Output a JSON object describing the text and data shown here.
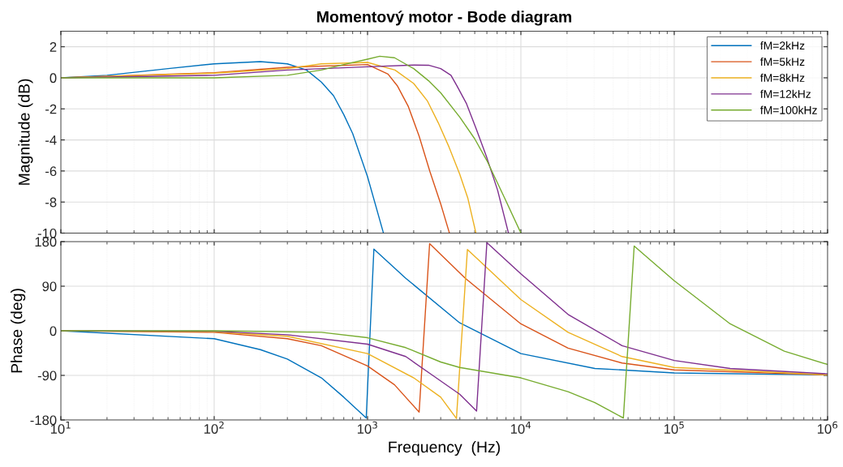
{
  "chart_data": [
    {
      "type": "line",
      "title": "Momentový motor - Bode diagram",
      "ylabel": "Magnitude (dB)",
      "log": "x",
      "grid": true,
      "legend": "top right",
      "marker": "none",
      "line_style": "solid",
      "tick_labels": "y",
      "xlim": [
        10,
        1000000
      ],
      "xticks": [
        {
          "value": 10,
          "label": null
        },
        {
          "value": 100,
          "label": null
        },
        {
          "value": 1000,
          "label": null
        },
        {
          "value": 10000,
          "label": null
        },
        {
          "value": 100000,
          "label": null
        },
        {
          "value": 1000000,
          "label": null
        }
      ],
      "ylim": [
        -10,
        3
      ],
      "yticks": [
        -10,
        -8,
        -6,
        -4,
        -2,
        0,
        2
      ],
      "series": [
        {
          "name": "fM=2kHz",
          "color": "#0072bd",
          "x": [
            10,
            20,
            50,
            100,
            200,
            300,
            400,
            500,
            600,
            700,
            800,
            1000,
            1270
          ],
          "values": [
            0,
            0.16,
            0.59,
            0.9,
            1.04,
            0.9,
            0.5,
            -0.28,
            -1.15,
            -2.37,
            -3.59,
            -6.37,
            -10
          ]
        },
        {
          "name": "fM=5kHz",
          "color": "#d95319",
          "x": [
            10,
            100,
            300,
            1000,
            1360,
            1570,
            1845,
            2170,
            2550,
            3000,
            3420
          ],
          "values": [
            0,
            0.33,
            0.68,
            0.85,
            0.24,
            -0.54,
            -1.85,
            -3.76,
            -6.03,
            -8.12,
            -10
          ]
        },
        {
          "name": "fM=8kHz",
          "color": "#edb120",
          "x": [
            10,
            100,
            300,
            500,
            1000,
            1510,
            2000,
            2460,
            2890,
            3400,
            3990,
            4510,
            5090
          ],
          "values": [
            0,
            0.3,
            0.59,
            0.9,
            0.99,
            0.5,
            -0.37,
            -1.5,
            -2.89,
            -4.46,
            -6.2,
            -7.76,
            -10
          ]
        },
        {
          "name": "fM=12kHz",
          "color": "#7e2f8e",
          "x": [
            10,
            100,
            300,
            1000,
            2000,
            2500,
            3000,
            3500,
            3840,
            4420,
            5090,
            6000,
            7050,
            8300
          ],
          "values": [
            0,
            0.16,
            0.5,
            0.71,
            0.82,
            0.81,
            0.59,
            0.16,
            -0.54,
            -1.67,
            -3.24,
            -5.15,
            -7.24,
            -10
          ]
        },
        {
          "name": "fM=100kHz",
          "color": "#77ac30",
          "x": [
            10,
            100,
            300,
            500,
            700,
            1000,
            1200,
            1500,
            2000,
            2500,
            3000,
            4000,
            5000,
            6000,
            7000,
            8000,
            10000
          ],
          "values": [
            0,
            0,
            0.16,
            0.5,
            0.85,
            1.2,
            1.39,
            1.29,
            0.59,
            -0.19,
            -0.97,
            -2.54,
            -3.93,
            -5.33,
            -6.72,
            -7.94,
            -10
          ]
        }
      ]
    },
    {
      "type": "line",
      "xlabel": "Frequency  (Hz)",
      "ylabel": "Phase (deg)",
      "log": "x",
      "grid": true,
      "marker": "none",
      "line_style": "solid",
      "xlim": [
        10,
        1000000
      ],
      "xticks": [
        {
          "value": 10,
          "label": "10$^{1}$"
        },
        {
          "value": 100,
          "label": "10$^{2}$"
        },
        {
          "value": 1000,
          "label": "10$^{3}$"
        },
        {
          "value": 10000,
          "label": "10$^{4}$"
        },
        {
          "value": 100000,
          "label": "10$^{5}$"
        },
        {
          "value": 1000000,
          "label": "10$^{6}$"
        }
      ],
      "ylim": [
        -180,
        180
      ],
      "yticks": [
        -180,
        -90,
        0,
        90,
        180
      ],
      "series": [
        {
          "color": "#0072bd",
          "x": [
            10,
            100,
            200,
            300,
            500,
            700,
            980,
            1100,
            1775,
            3990,
            10000,
            30400,
            100000,
            1000000
          ],
          "values": [
            0,
            -16,
            -38,
            -57,
            -95,
            -134,
            -176,
            165,
            106,
            16,
            -46,
            -76,
            -85,
            -89
          ]
        },
        {
          "color": "#d95319",
          "x": [
            10,
            100,
            300,
            500,
            1000,
            1500,
            2170,
            2540,
            4340,
            10000,
            20300,
            45700,
            100000,
            1000000
          ],
          "values": [
            0,
            -3,
            -16,
            -30,
            -71,
            -109,
            -164,
            176,
            106,
            14,
            -35,
            -65,
            -79,
            -89
          ]
        },
        {
          "color": "#edb120",
          "x": [
            10,
            100,
            300,
            1000,
            2000,
            3000,
            3800,
            4480,
            10000,
            20300,
            45700,
            100000,
            1000000
          ],
          "values": [
            0,
            -2,
            -11,
            -46,
            -95,
            -134,
            -177,
            164,
            63,
            -3,
            -52,
            -74,
            -89
          ]
        },
        {
          "color": "#7e2f8e",
          "x": [
            10,
            100,
            300,
            1000,
            1775,
            2660,
            3990,
            5140,
            6000,
            10000,
            20300,
            45700,
            100000,
            231700,
            1000000
          ],
          "values": [
            0,
            -1,
            -8,
            -27,
            -52,
            -90,
            -128,
            -162,
            178,
            115,
            33,
            -30,
            -60,
            -76,
            -87
          ]
        },
        {
          "color": "#77ac30",
          "x": [
            10,
            100,
            500,
            1000,
            1775,
            3000,
            3990,
            10000,
            20300,
            30400,
            46600,
            54800,
            100000,
            231700,
            522000,
            1000000
          ],
          "values": [
            0,
            0,
            -3,
            -14,
            -34,
            -63,
            -74,
            -95,
            -123,
            -145,
            -176,
            171,
            101,
            14,
            -41,
            -68
          ]
        }
      ]
    }
  ]
}
